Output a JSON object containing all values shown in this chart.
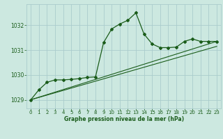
{
  "title": "Graphe pression niveau de la mer (hPa)",
  "background_color": "#cce8e0",
  "grid_color": "#aacccc",
  "line_color": "#1a5c1a",
  "text_color": "#1a5c1a",
  "xlim": [
    -0.5,
    23.5
  ],
  "ylim": [
    1028.65,
    1032.85
  ],
  "yticks": [
    1029,
    1030,
    1031,
    1032
  ],
  "xticks": [
    0,
    1,
    2,
    3,
    4,
    5,
    6,
    7,
    8,
    9,
    10,
    11,
    12,
    13,
    14,
    15,
    16,
    17,
    18,
    19,
    20,
    21,
    22,
    23
  ],
  "pressure_data": [
    1029.0,
    1029.4,
    1029.7,
    1029.8,
    1029.8,
    1029.82,
    1029.85,
    1029.9,
    1029.92,
    1031.3,
    1031.85,
    1032.05,
    1032.2,
    1032.5,
    1031.65,
    1031.25,
    1031.1,
    1031.1,
    1031.12,
    1031.35,
    1031.45,
    1031.35,
    1031.35,
    1031.35
  ],
  "trend1": [
    0,
    1029.0,
    23,
    1031.35
  ],
  "trend2": [
    0,
    1029.0,
    23,
    1031.15
  ]
}
